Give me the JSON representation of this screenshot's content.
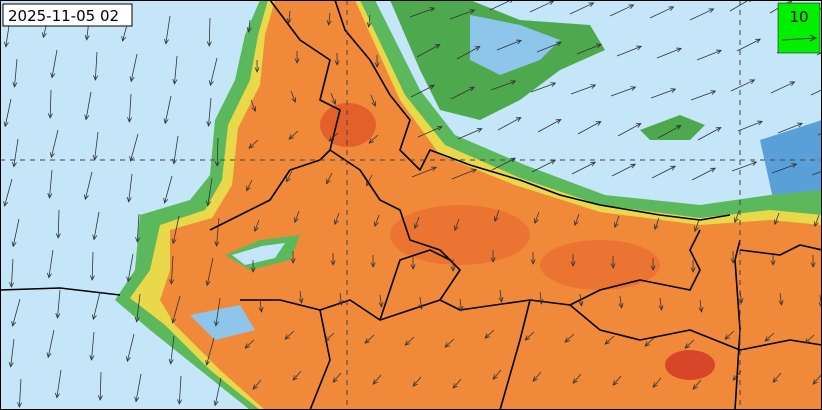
{
  "timestamp": "2025-11-05 02",
  "legend": {
    "label": "10"
  }
}
